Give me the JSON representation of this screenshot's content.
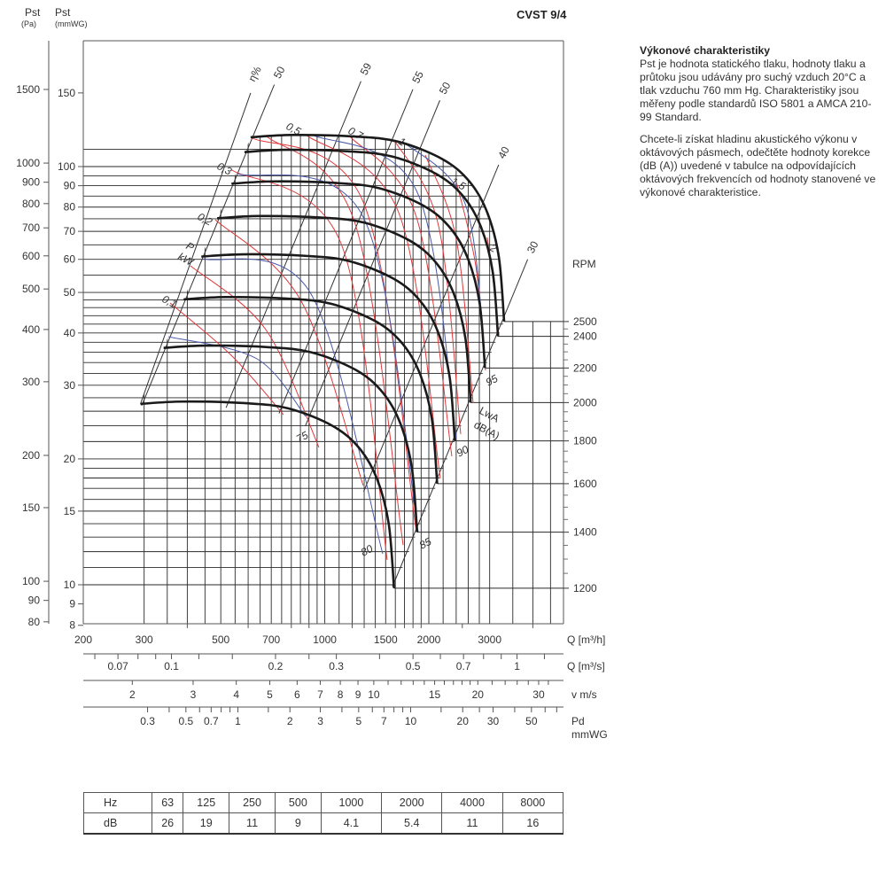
{
  "title": "CVST 9/4",
  "description": {
    "heading": "Výkonové charakteristiky",
    "paragraph1": "Pst je hodnota statického tlaku, hodnoty tlaku a průtoku jsou udávány pro suchý vzduch 20°C a tlak vzduchu 760 mm Hg. Charakteristiky jsou měřeny podle standardů ISO 5801 a AMCA 210-99 Standard.",
    "paragraph2": "Chcete-li získat hladinu akustického výkonu v oktávových pásmech, odečtěte hodnoty korekce (dB (A)) uvedené v tabulce na odpovídajících oktávových frekvencích od hodnoty stanovené ve výkonové charakteristice."
  },
  "octave_table": {
    "row_labels": [
      "Hz",
      "dB"
    ],
    "hz": [
      "63",
      "125",
      "250",
      "500",
      "1000",
      "2000",
      "4000",
      "8000"
    ],
    "db": [
      "26",
      "19",
      "11",
      "9",
      "4.1",
      "5.4",
      "11",
      "16"
    ]
  },
  "chart_data": {
    "type": "line",
    "title": "CVST 9/4",
    "axes": {
      "y_pa_label": [
        "Pst",
        "(Pa)"
      ],
      "y_mm_label": [
        "Pst",
        "(mmWG)"
      ],
      "y_pa_ticks": [
        1500,
        1000,
        900,
        800,
        700,
        600,
        500,
        400,
        300,
        200,
        150,
        100,
        90,
        80
      ],
      "y_mm_ticks": [
        150,
        100,
        90,
        80,
        70,
        60,
        50,
        40,
        30,
        20,
        15,
        10,
        9,
        8
      ],
      "ylim_mmWG": [
        7.5,
        190
      ],
      "x_label": "Q [m³/h]",
      "x_ticks": [
        200,
        300,
        500,
        700,
        1000,
        1500,
        2000,
        3000
      ],
      "xlim_m3h": [
        200,
        4900
      ],
      "q_m3s_label": "Q [m³/s]",
      "q_m3s_ticks": [
        0.07,
        0.1,
        0.2,
        0.3,
        0.5,
        0.7,
        1
      ],
      "v_label": "v m/s",
      "v_ticks": [
        2,
        3,
        4,
        5,
        6,
        7,
        8,
        9,
        10,
        15,
        20,
        30
      ],
      "pd_label": [
        "Pd",
        "mmWG"
      ],
      "pd_ticks": [
        0.3,
        0.5,
        0.7,
        1,
        2,
        3,
        5,
        7,
        10,
        20,
        30,
        50
      ],
      "rpm_label": "RPM",
      "rpm_ticks": [
        2500,
        2400,
        2200,
        2000,
        1800,
        1600,
        1400,
        1200
      ]
    },
    "fan_curve_2500rpm": {
      "q_m3h": [
        610,
        805,
        1219,
        1636,
        2198,
        2624,
        2953,
        3189,
        3304
      ],
      "p_mmWG": [
        117.5,
        119,
        118,
        114.6,
        104,
        92,
        77.6,
        60.8,
        42.6
      ]
    },
    "series_rpm": [
      2500,
      2400,
      2200,
      2000,
      1800,
      1600,
      1400,
      1200
    ],
    "efficiency": {
      "label": "η%",
      "lines": [
        {
          "value": "50",
          "q_at_100mmWG": 570,
          "p_range": [
            26.8,
            157
          ]
        },
        {
          "value": "59",
          "q_at_100mmWG": 1006,
          "p_range": [
            26.5,
            160
          ]
        },
        {
          "value": "55",
          "q_at_100mmWG": 1454,
          "p_range": [
            25.7,
            153
          ]
        },
        {
          "value": "50",
          "q_at_100mmWG": 1794,
          "p_range": [
            24,
            144
          ]
        },
        {
          "value": "40",
          "q_at_100mmWG": 3170,
          "p_range": [
            16.7,
            101
          ]
        },
        {
          "value": "30",
          "q_at_100mmWG": 4990,
          "p_range": [
            9.9,
            60
          ]
        }
      ]
    },
    "power_kW": {
      "label": [
        "P",
        "kW"
      ],
      "values": [
        "0,1",
        "0,2",
        "0,3",
        "0,5",
        "0,7",
        "1",
        "1,5",
        "2"
      ]
    },
    "sound_LwA": {
      "label": [
        "LwA",
        "dB(A)"
      ],
      "values": [
        "75",
        "80",
        "85",
        "90",
        "95"
      ]
    },
    "colors": {
      "fan": "#1a1a1a",
      "power": "#e0393b",
      "sound": "#4a5aa8",
      "grid": "#2a2a2a"
    }
  }
}
